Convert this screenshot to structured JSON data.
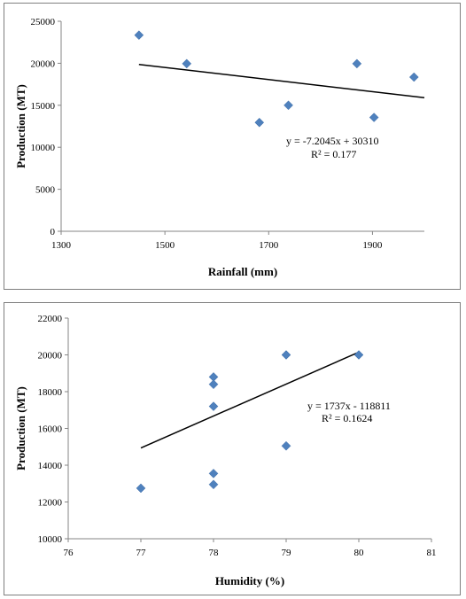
{
  "chart_data": [
    {
      "type": "scatter",
      "xlabel": "Rainfall (mm)",
      "ylabel": "Production (MT)",
      "xlim": [
        1300,
        2000
      ],
      "ylim": [
        0,
        25000
      ],
      "x_ticks": [
        1300,
        1500,
        1700,
        1900
      ],
      "y_ticks": [
        0,
        5000,
        10000,
        15000,
        20000,
        25000
      ],
      "x_tick_labels": [
        "1300",
        "1500",
        "1700",
        "1900"
      ],
      "y_tick_labels": [
        "0",
        "5000",
        "10000",
        "15000",
        "20000",
        "25000"
      ],
      "points": [
        {
          "x": 1450,
          "y": 23350
        },
        {
          "x": 1542,
          "y": 19950
        },
        {
          "x": 1682,
          "y": 12950
        },
        {
          "x": 1738,
          "y": 15000
        },
        {
          "x": 1870,
          "y": 19950
        },
        {
          "x": 1903,
          "y": 13550
        },
        {
          "x": 1980,
          "y": 18350
        }
      ],
      "trendline": {
        "slope": -7.2045,
        "intercept": 30310,
        "x_range": [
          1450,
          2000
        ]
      },
      "equation": "y = -7.2045x + 30310",
      "r_squared": "R² = 0.177",
      "marker_color": "#4f81bd"
    },
    {
      "type": "scatter",
      "xlabel": "Humidity (%)",
      "ylabel": "Production (MT)",
      "xlim": [
        76,
        81
      ],
      "ylim": [
        10000,
        22000
      ],
      "x_ticks": [
        76,
        77,
        78,
        79,
        80,
        81
      ],
      "y_ticks": [
        10000,
        12000,
        14000,
        16000,
        18000,
        20000,
        22000
      ],
      "x_tick_labels": [
        "76",
        "77",
        "78",
        "79",
        "80",
        "81"
      ],
      "y_tick_labels": [
        "10000",
        "12000",
        "14000",
        "16000",
        "18000",
        "20000",
        "22000"
      ],
      "points": [
        {
          "x": 77,
          "y": 12750
        },
        {
          "x": 78,
          "y": 18800
        },
        {
          "x": 78,
          "y": 18400
        },
        {
          "x": 78,
          "y": 17200
        },
        {
          "x": 78,
          "y": 13550
        },
        {
          "x": 78,
          "y": 12950
        },
        {
          "x": 79,
          "y": 20000
        },
        {
          "x": 79,
          "y": 15050
        },
        {
          "x": 80,
          "y": 20000
        }
      ],
      "trendline": {
        "slope": 1737,
        "intercept": -118811,
        "x_range": [
          77,
          80
        ]
      },
      "equation": "y = 1737x - 118811",
      "r_squared": "R² = 0.1624",
      "marker_color": "#4f81bd"
    }
  ]
}
